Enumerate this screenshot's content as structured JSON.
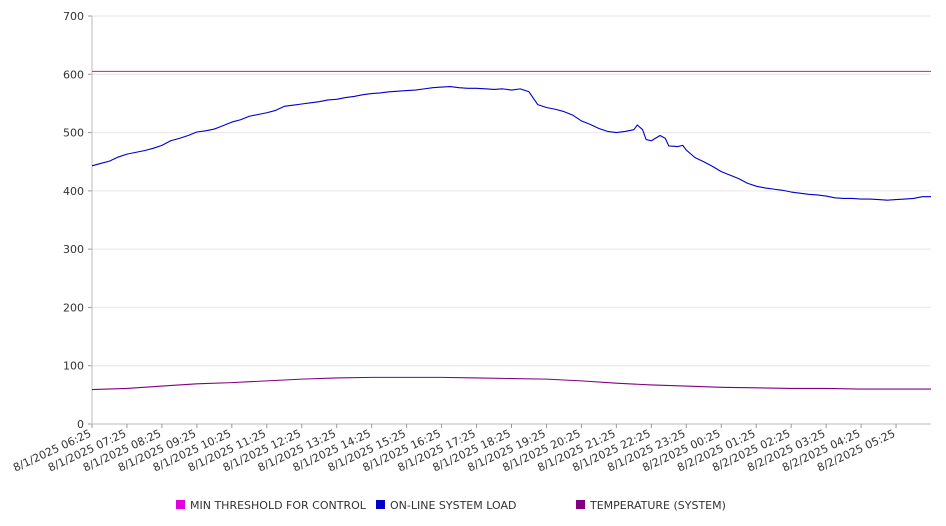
{
  "chart_data": {
    "type": "line",
    "title": "",
    "xlabel": "",
    "ylabel": "",
    "ylim": [
      0,
      700
    ],
    "yticks": [
      0,
      100,
      200,
      300,
      400,
      500,
      600,
      700
    ],
    "x_categories": [
      "8/1/2025 06:25",
      "8/1/2025 07:25",
      "8/1/2025 08:25",
      "8/1/2025 09:25",
      "8/1/2025 10:25",
      "8/1/2025 11:25",
      "8/1/2025 12:25",
      "8/1/2025 13:25",
      "8/1/2025 14:25",
      "8/1/2025 15:25",
      "8/1/2025 16:25",
      "8/1/2025 17:25",
      "8/1/2025 18:25",
      "8/1/2025 19:25",
      "8/1/2025 20:25",
      "8/1/2025 21:25",
      "8/1/2025 22:25",
      "8/1/2025 23:25",
      "8/2/2025 00:25",
      "8/2/2025 01:25",
      "8/2/2025 02:25",
      "8/2/2025 03:25",
      "8/2/2025 04:25",
      "8/2/2025 05:25"
    ],
    "x_range": [
      "8/1/2025 06:25",
      "8/2/2025 06:25"
    ],
    "grid": true,
    "legend_position": "bottom",
    "series": [
      {
        "name": "MIN THRESHOLD FOR CONTROL",
        "color": "#e000e0",
        "points": [
          [
            0,
            605
          ],
          [
            24,
            605
          ]
        ]
      },
      {
        "name": "ON-LINE SYSTEM LOAD",
        "color": "#0000c8",
        "points": [
          [
            0,
            443
          ],
          [
            0.25,
            447
          ],
          [
            0.5,
            451
          ],
          [
            0.75,
            458
          ],
          [
            1.0,
            463
          ],
          [
            1.25,
            466
          ],
          [
            1.5,
            469
          ],
          [
            1.75,
            473
          ],
          [
            2.0,
            478
          ],
          [
            2.25,
            486
          ],
          [
            2.5,
            490
          ],
          [
            2.75,
            495
          ],
          [
            3.0,
            501
          ],
          [
            3.25,
            503
          ],
          [
            3.5,
            506
          ],
          [
            3.75,
            512
          ],
          [
            4.0,
            518
          ],
          [
            4.25,
            522
          ],
          [
            4.5,
            528
          ],
          [
            4.75,
            531
          ],
          [
            5.0,
            534
          ],
          [
            5.25,
            538
          ],
          [
            5.5,
            545
          ],
          [
            5.75,
            547
          ],
          [
            6.0,
            549
          ],
          [
            6.25,
            551
          ],
          [
            6.5,
            553
          ],
          [
            6.75,
            556
          ],
          [
            7.0,
            557
          ],
          [
            7.25,
            560
          ],
          [
            7.5,
            562
          ],
          [
            7.75,
            565
          ],
          [
            8.0,
            567
          ],
          [
            8.25,
            568
          ],
          [
            8.5,
            570
          ],
          [
            8.75,
            571
          ],
          [
            9.0,
            572
          ],
          [
            9.25,
            573
          ],
          [
            9.5,
            575
          ],
          [
            9.75,
            577
          ],
          [
            10.0,
            578
          ],
          [
            10.25,
            579
          ],
          [
            10.5,
            577
          ],
          [
            10.75,
            576
          ],
          [
            11.0,
            576
          ],
          [
            11.25,
            575
          ],
          [
            11.5,
            574
          ],
          [
            11.75,
            575
          ],
          [
            12.0,
            573
          ],
          [
            12.25,
            575
          ],
          [
            12.5,
            570
          ],
          [
            12.75,
            548
          ],
          [
            13.0,
            543
          ],
          [
            13.25,
            540
          ],
          [
            13.5,
            536
          ],
          [
            13.75,
            530
          ],
          [
            14.0,
            520
          ],
          [
            14.25,
            514
          ],
          [
            14.5,
            507
          ],
          [
            14.75,
            502
          ],
          [
            15.0,
            500
          ],
          [
            15.25,
            502
          ],
          [
            15.5,
            505
          ],
          [
            15.6,
            513
          ],
          [
            15.75,
            505
          ],
          [
            15.85,
            488
          ],
          [
            16.0,
            486
          ],
          [
            16.25,
            495
          ],
          [
            16.4,
            490
          ],
          [
            16.5,
            477
          ],
          [
            16.75,
            476
          ],
          [
            16.9,
            478
          ],
          [
            17.0,
            470
          ],
          [
            17.25,
            457
          ],
          [
            17.5,
            450
          ],
          [
            17.75,
            442
          ],
          [
            18.0,
            433
          ],
          [
            18.25,
            427
          ],
          [
            18.5,
            421
          ],
          [
            18.75,
            413
          ],
          [
            19.0,
            408
          ],
          [
            19.25,
            405
          ],
          [
            19.5,
            403
          ],
          [
            19.75,
            401
          ],
          [
            20.0,
            398
          ],
          [
            20.25,
            396
          ],
          [
            20.5,
            394
          ],
          [
            20.75,
            393
          ],
          [
            21.0,
            391
          ],
          [
            21.25,
            388
          ],
          [
            21.5,
            387
          ],
          [
            21.75,
            387
          ],
          [
            22.0,
            386
          ],
          [
            22.25,
            386
          ],
          [
            22.5,
            385
          ],
          [
            22.75,
            384
          ],
          [
            23.0,
            385
          ],
          [
            23.25,
            386
          ],
          [
            23.5,
            387
          ],
          [
            23.75,
            390
          ],
          [
            24.0,
            390
          ]
        ]
      },
      {
        "name": "TEMPERATURE (SYSTEM)",
        "color": "#800080",
        "points": [
          [
            0,
            59
          ],
          [
            1,
            61
          ],
          [
            2,
            65
          ],
          [
            3,
            69
          ],
          [
            4,
            71
          ],
          [
            5,
            74
          ],
          [
            6,
            77
          ],
          [
            7,
            79
          ],
          [
            8,
            80
          ],
          [
            9,
            80
          ],
          [
            10,
            80
          ],
          [
            11,
            79
          ],
          [
            12,
            78
          ],
          [
            13,
            77
          ],
          [
            14,
            74
          ],
          [
            15,
            70
          ],
          [
            16,
            67
          ],
          [
            17,
            65
          ],
          [
            18,
            63
          ],
          [
            19,
            62
          ],
          [
            20,
            61
          ],
          [
            21,
            61
          ],
          [
            22,
            60
          ],
          [
            23,
            60
          ],
          [
            24,
            60
          ]
        ]
      }
    ]
  }
}
